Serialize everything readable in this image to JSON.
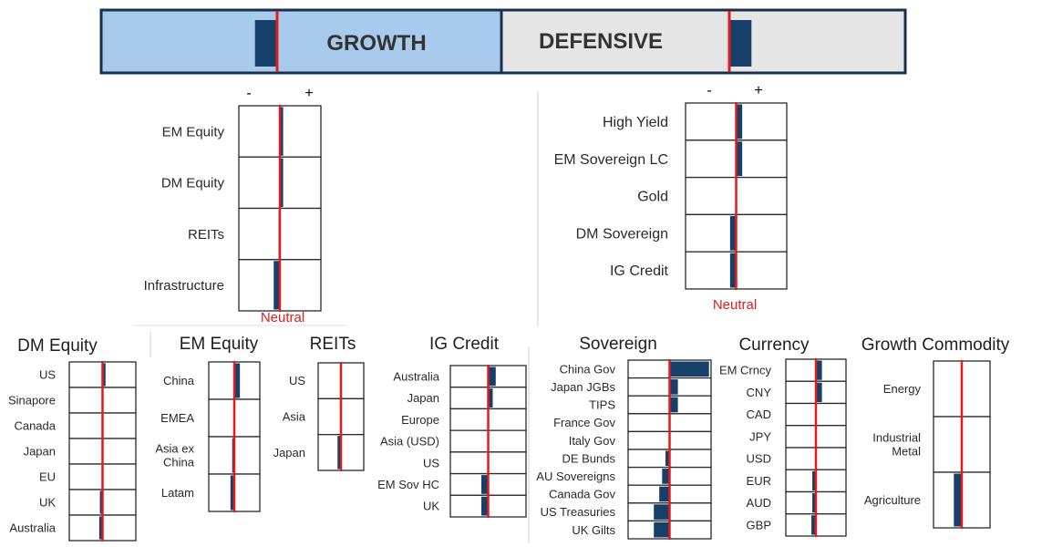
{
  "header": {
    "growth_label": "GROWTH",
    "defensive_label": "DEFENSIVE",
    "colors": {
      "growth_fill": "#a8cbed",
      "defensive_fill": "#e6e6e6",
      "border": "#16304f",
      "bar": "#16406a",
      "neutral_line": "#e31b1b"
    },
    "growth_tilt": -0.09,
    "defensive_tilt": 0.09
  },
  "neutral_label": "Neutral",
  "minus_label": "-",
  "plus_label": "+",
  "chart_data": [
    {
      "type": "bar",
      "title": "",
      "group": "Growth",
      "categories": [
        "EM Equity",
        "DM Equity",
        "REITs",
        "Infrastructure"
      ],
      "values": [
        0.08,
        0.08,
        -0.03,
        -0.15
      ],
      "xlim": [
        -1,
        1
      ]
    },
    {
      "type": "bar",
      "title": "",
      "group": "Defensive",
      "categories": [
        "High Yield",
        "EM Sovereign LC",
        "Gold",
        "DM Sovereign",
        "IG Credit"
      ],
      "values": [
        0.12,
        0.12,
        0.0,
        -0.12,
        -0.12
      ],
      "xlim": [
        -1,
        1
      ]
    },
    {
      "type": "bar",
      "title": "DM Equity",
      "categories": [
        "US",
        "Sinapore",
        "Canada",
        "Japan",
        "EU",
        "UK",
        "Australia"
      ],
      "values": [
        0.09,
        0.0,
        0.0,
        0.0,
        0.0,
        -0.08,
        -0.1
      ],
      "xlim": [
        -1,
        1
      ]
    },
    {
      "type": "bar",
      "title": "EM Equity",
      "categories": [
        "China",
        "EMEA",
        "Asia ex China",
        "Latam"
      ],
      "values": [
        0.22,
        0.0,
        -0.08,
        -0.15
      ],
      "xlim": [
        -1,
        1
      ]
    },
    {
      "type": "bar",
      "title": "REITs",
      "categories": [
        "US",
        "Asia",
        "Japan"
      ],
      "values": [
        0.0,
        0.0,
        -0.15
      ],
      "xlim": [
        -1,
        1
      ]
    },
    {
      "type": "bar",
      "title": "IG Credit",
      "categories": [
        "Australia",
        "Japan",
        "Europe",
        "Asia (USD)",
        "US",
        "EM Sov HC",
        "UK"
      ],
      "values": [
        0.2,
        0.12,
        0.0,
        0.0,
        0.0,
        -0.18,
        -0.18
      ],
      "xlim": [
        -1,
        1
      ]
    },
    {
      "type": "bar",
      "title": "Sovereign",
      "categories": [
        "China Gov",
        "Japan JGBs",
        "TIPS",
        "France Gov",
        "Italy Gov",
        "DE Bunds",
        "AU Sovereigns",
        "Canada Gov",
        "US Treasuries",
        "UK Gilts"
      ],
      "values": [
        0.95,
        0.2,
        0.2,
        0.0,
        0.0,
        -0.1,
        -0.18,
        -0.25,
        -0.38,
        -0.38
      ],
      "xlim": [
        -1,
        1
      ]
    },
    {
      "type": "bar",
      "title": "Currency",
      "categories": [
        "EM Crncy",
        "CNY",
        "CAD",
        "JPY",
        "USD",
        "EUR",
        "AUD",
        "GBP"
      ],
      "values": [
        0.2,
        0.2,
        0.0,
        0.0,
        0.0,
        -0.12,
        -0.12,
        -0.15
      ],
      "xlim": [
        -1,
        1
      ]
    },
    {
      "type": "bar",
      "title": "Growth Commodity",
      "categories": [
        "Energy",
        "Industrial Metal",
        "Agriculture"
      ],
      "values": [
        0.0,
        0.0,
        -0.28
      ],
      "xlim": [
        -1,
        1
      ]
    }
  ]
}
